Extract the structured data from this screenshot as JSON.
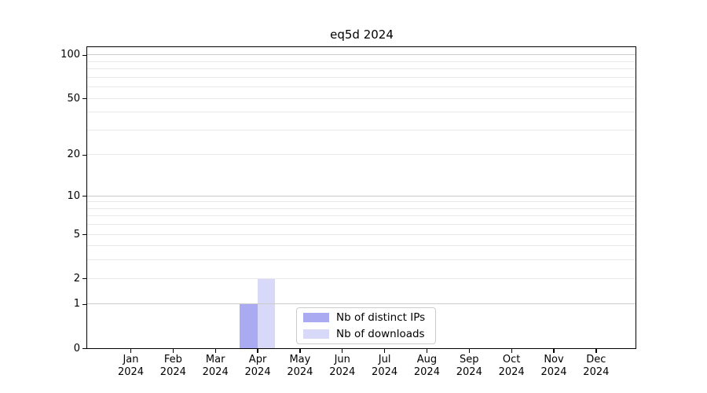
{
  "chart_data": {
    "type": "bar",
    "title": "eq5d 2024",
    "categories": [
      "Jan",
      "Feb",
      "Mar",
      "Apr",
      "May",
      "Jun",
      "Jul",
      "Aug",
      "Sep",
      "Oct",
      "Nov",
      "Dec"
    ],
    "category_year": "2024",
    "series": [
      {
        "name": "Nb of distinct IPs",
        "color": "#aaaaf2",
        "values": [
          0,
          0,
          0,
          1,
          0,
          0,
          0,
          0,
          0,
          0,
          0,
          0
        ]
      },
      {
        "name": "Nb of downloads",
        "color": "#d8d8f8",
        "values": [
          0,
          0,
          0,
          2,
          0,
          0,
          0,
          0,
          0,
          0,
          0,
          0
        ]
      }
    ],
    "xlabel": "",
    "ylabel": "",
    "yscale": "log1p",
    "ylim": [
      0,
      113
    ],
    "yticks": [
      0,
      1,
      2,
      5,
      10,
      20,
      50,
      100
    ],
    "major_gridlines": [
      1,
      10,
      100
    ],
    "minor_gridlines": [
      2,
      3,
      4,
      5,
      6,
      7,
      8,
      9,
      20,
      30,
      40,
      50,
      60,
      70,
      80,
      90
    ],
    "grid": true,
    "legend_position": "lower center (inside plot)"
  },
  "colors": {
    "background": "#ffffff",
    "axis": "#000000",
    "major_grid": "#cbcbcb",
    "minor_grid": "#e9e9e9",
    "legend_border": "#cccccc"
  }
}
